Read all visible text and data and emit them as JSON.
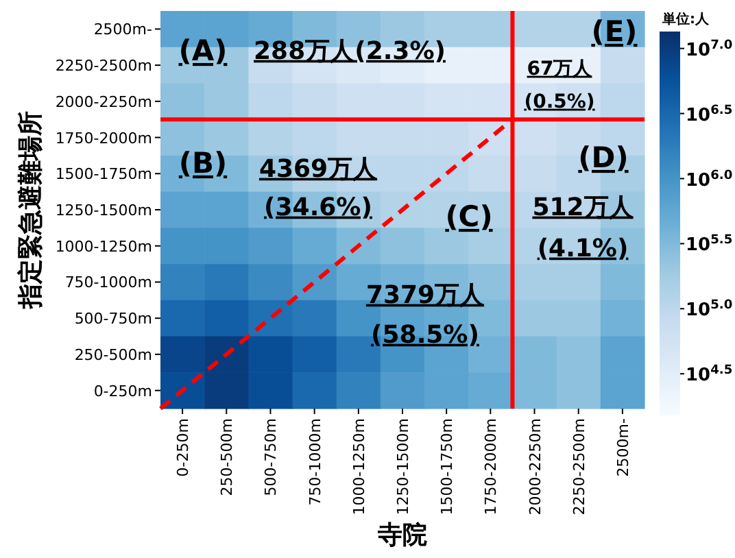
{
  "chart_data": {
    "type": "heatmap",
    "xlabel": "寺院",
    "ylabel": "指定緊急避難場所",
    "clabel": "単位:人",
    "categories": [
      "0-250m",
      "250-500m",
      "500-750m",
      "750-1000m",
      "1000-1250m",
      "1250-1500m",
      "1500-1750m",
      "1750-2000m",
      "2000-2250m",
      "2250-2500m",
      "2500m-"
    ],
    "y_categories": [
      "2500m-",
      "2250-2500m",
      "2000-2250m",
      "1750-2000m",
      "1500-1750m",
      "1250-1500m",
      "1000-1250m",
      "750-1000m",
      "500-750m",
      "250-500m",
      "0-250m"
    ],
    "cells": [
      [
        5.8,
        5.8,
        5.7,
        5.5,
        5.4,
        5.3,
        5.2,
        5.2,
        5.1,
        5.1,
        5.6
      ],
      [
        5.3,
        5.3,
        4.9,
        4.7,
        4.6,
        4.5,
        4.4,
        4.4,
        4.4,
        4.4,
        4.9
      ],
      [
        5.4,
        5.3,
        5.0,
        4.9,
        4.8,
        4.8,
        4.7,
        4.7,
        4.7,
        4.8,
        5.0
      ],
      [
        5.4,
        5.3,
        5.1,
        5.0,
        4.9,
        4.9,
        4.9,
        4.8,
        4.8,
        4.9,
        5.0
      ],
      [
        5.6,
        5.5,
        5.3,
        5.1,
        5.0,
        5.0,
        5.0,
        4.9,
        4.9,
        5.0,
        5.2
      ],
      [
        5.8,
        5.8,
        5.6,
        5.4,
        5.2,
        5.1,
        5.1,
        5.1,
        5.0,
        5.0,
        5.3
      ],
      [
        6.0,
        6.0,
        5.9,
        5.7,
        5.5,
        5.4,
        5.3,
        5.2,
        5.1,
        5.1,
        5.4
      ],
      [
        6.2,
        6.3,
        6.1,
        5.9,
        5.7,
        5.6,
        5.5,
        5.4,
        5.2,
        5.2,
        5.5
      ],
      [
        6.5,
        6.6,
        6.4,
        6.3,
        6.0,
        5.8,
        5.7,
        5.5,
        5.3,
        5.3,
        5.6
      ],
      [
        6.9,
        7.0,
        6.8,
        6.6,
        6.3,
        6.0,
        5.8,
        5.6,
        5.5,
        5.4,
        5.8
      ],
      [
        6.8,
        7.0,
        6.8,
        6.5,
        6.2,
        5.9,
        5.8,
        5.7,
        5.5,
        5.4,
        5.8
      ]
    ],
    "clim": [
      4.18,
      7.13
    ],
    "cticks": [
      {
        "value": 4.5,
        "label": "10$^{4.5}$"
      },
      {
        "value": 5.0,
        "label": "10$^{5.0}$"
      },
      {
        "value": 5.5,
        "label": "10$^{5.5}$"
      },
      {
        "value": 6.0,
        "label": "10$^{6.0}$"
      },
      {
        "value": 6.5,
        "label": "10$^{6.5}$"
      },
      {
        "value": 7.0,
        "label": "10$^{7.0}$"
      }
    ],
    "annotations": [
      "(A)",
      "288万人(2.3%)",
      "(E)",
      "67万人",
      "(0.5%)",
      "(B)",
      "4369万人",
      "(34.6%)",
      "(C)",
      "(D)",
      "512万人",
      "(4.1%)",
      "7379万人",
      "(58.5%)"
    ]
  }
}
